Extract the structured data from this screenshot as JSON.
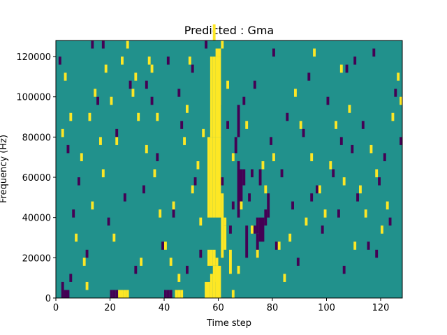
{
  "chart_data": {
    "type": "heatmap",
    "title": "Predicted : Gma",
    "xlabel": "Time step",
    "ylabel": "Frequency (Hz)",
    "xlim": [
      0,
      128
    ],
    "ylim": [
      0,
      128000
    ],
    "x_ticks": [
      0,
      20,
      40,
      60,
      80,
      100,
      120
    ],
    "y_ticks": [
      0,
      20000,
      40000,
      60000,
      80000,
      100000,
      120000
    ],
    "y_tick_labels": [
      "0",
      "20000",
      "40000",
      "60000",
      "80000",
      "100000",
      "120000"
    ],
    "grid": false,
    "colormap": "viridis",
    "colors": {
      "background": "#21918c",
      "low": "#440154",
      "high": "#fde725"
    },
    "time_bins": 128,
    "freq_bin_hz": 4000,
    "cells_high": [
      [
        55,
        0,
        2
      ],
      [
        56,
        0,
        2
      ],
      [
        57,
        0,
        3
      ],
      [
        58,
        0,
        4
      ],
      [
        59,
        0,
        4
      ],
      [
        60,
        0,
        4
      ],
      [
        56,
        4,
        6
      ],
      [
        57,
        4,
        6
      ],
      [
        58,
        4,
        6
      ],
      [
        59,
        4,
        5
      ],
      [
        56,
        10,
        20
      ],
      [
        57,
        10,
        20
      ],
      [
        58,
        10,
        20
      ],
      [
        59,
        10,
        20
      ],
      [
        60,
        10,
        20
      ],
      [
        57,
        20,
        30
      ],
      [
        58,
        20,
        30
      ],
      [
        59,
        20,
        30
      ],
      [
        60,
        20,
        30
      ],
      [
        61,
        5,
        13
      ],
      [
        62,
        6,
        9
      ],
      [
        59,
        2,
        4
      ],
      [
        23,
        0,
        1
      ],
      [
        24,
        0,
        1
      ],
      [
        25,
        0,
        1
      ],
      [
        26,
        0,
        1
      ],
      [
        44,
        0,
        1
      ],
      [
        45,
        0,
        1
      ],
      [
        46,
        0,
        1
      ],
      [
        59,
        30,
        31
      ],
      [
        60,
        30,
        31
      ],
      [
        61,
        31,
        32
      ],
      [
        58,
        32,
        34
      ],
      [
        60,
        24,
        27
      ],
      [
        64,
        3,
        6
      ],
      [
        65,
        0,
        1
      ],
      [
        2,
        20,
        21
      ],
      [
        5,
        22,
        23
      ],
      [
        9,
        17,
        18
      ],
      [
        12,
        22,
        23
      ],
      [
        14,
        25,
        26
      ],
      [
        16,
        19,
        20
      ],
      [
        18,
        28,
        29
      ],
      [
        20,
        24,
        25
      ],
      [
        22,
        19,
        20
      ],
      [
        24,
        29,
        30
      ],
      [
        26,
        31,
        32
      ],
      [
        28,
        25,
        26
      ],
      [
        30,
        22,
        23
      ],
      [
        33,
        18,
        19
      ],
      [
        34,
        29,
        30
      ],
      [
        36,
        15,
        16
      ],
      [
        38,
        10,
        11
      ],
      [
        40,
        6,
        7
      ],
      [
        42,
        4,
        5
      ],
      [
        45,
        2,
        3
      ],
      [
        47,
        19,
        20
      ],
      [
        48,
        23,
        24
      ],
      [
        50,
        13,
        14
      ],
      [
        52,
        16,
        17
      ],
      [
        54,
        20,
        21
      ],
      [
        62,
        9,
        10
      ],
      [
        63,
        26,
        27
      ],
      [
        65,
        17,
        18
      ],
      [
        68,
        11,
        12
      ],
      [
        72,
        8,
        9
      ],
      [
        74,
        5,
        6
      ],
      [
        77,
        13,
        14
      ],
      [
        80,
        17,
        18
      ],
      [
        82,
        6,
        7
      ],
      [
        86,
        7,
        8
      ],
      [
        88,
        25,
        26
      ],
      [
        90,
        21,
        22
      ],
      [
        92,
        9,
        10
      ],
      [
        95,
        30,
        31
      ],
      [
        97,
        13,
        14
      ],
      [
        99,
        10,
        11
      ],
      [
        101,
        16,
        17
      ],
      [
        103,
        21,
        22
      ],
      [
        105,
        28,
        29
      ],
      [
        108,
        23,
        24
      ],
      [
        110,
        6,
        7
      ],
      [
        112,
        13,
        14
      ],
      [
        114,
        10,
        11
      ],
      [
        116,
        18,
        19
      ],
      [
        118,
        15,
        16
      ],
      [
        120,
        8,
        9
      ],
      [
        122,
        11,
        12
      ],
      [
        124,
        22,
        23
      ],
      [
        126,
        27,
        28
      ],
      [
        127,
        24,
        25
      ],
      [
        3,
        27,
        28
      ],
      [
        7,
        7,
        8
      ],
      [
        10,
        4,
        5
      ],
      [
        11,
        1,
        2
      ],
      [
        13,
        11,
        12
      ],
      [
        17,
        15,
        16
      ],
      [
        21,
        7,
        8
      ],
      [
        29,
        27,
        28
      ],
      [
        31,
        4,
        5
      ],
      [
        35,
        28,
        29
      ],
      [
        37,
        22,
        23
      ],
      [
        43,
        11,
        12
      ],
      [
        49,
        29,
        30
      ],
      [
        53,
        9,
        10
      ],
      [
        67,
        3,
        4
      ],
      [
        70,
        21,
        22
      ],
      [
        76,
        16,
        17
      ],
      [
        84,
        2,
        3
      ],
      [
        94,
        17,
        18
      ],
      [
        106,
        14,
        15
      ]
    ],
    "cells_low": [
      [
        2,
        0,
        2
      ],
      [
        3,
        0,
        1
      ],
      [
        4,
        0,
        1
      ],
      [
        20,
        0,
        1
      ],
      [
        21,
        0,
        1
      ],
      [
        22,
        0,
        1
      ],
      [
        40,
        0,
        1
      ],
      [
        41,
        0,
        1
      ],
      [
        42,
        0,
        1
      ],
      [
        67,
        10,
        17
      ],
      [
        68,
        12,
        16
      ],
      [
        69,
        14,
        16
      ],
      [
        67,
        20,
        24
      ],
      [
        73,
        8,
        9
      ],
      [
        74,
        8,
        10
      ],
      [
        75,
        7,
        10
      ],
      [
        76,
        7,
        10
      ],
      [
        77,
        9,
        11
      ],
      [
        66,
        18,
        20
      ],
      [
        70,
        5,
        9
      ],
      [
        72,
        15,
        16
      ],
      [
        75,
        14,
        16
      ],
      [
        74,
        5,
        8
      ],
      [
        78,
        10,
        13
      ],
      [
        1,
        29,
        30
      ],
      [
        4,
        18,
        19
      ],
      [
        6,
        10,
        11
      ],
      [
        8,
        14,
        15
      ],
      [
        11,
        5,
        6
      ],
      [
        15,
        24,
        25
      ],
      [
        17,
        31,
        32
      ],
      [
        19,
        9,
        10
      ],
      [
        22,
        20,
        21
      ],
      [
        25,
        12,
        13
      ],
      [
        27,
        26,
        27
      ],
      [
        29,
        3,
        4
      ],
      [
        32,
        13,
        14
      ],
      [
        35,
        24,
        25
      ],
      [
        37,
        17,
        18
      ],
      [
        39,
        6,
        7
      ],
      [
        41,
        29,
        30
      ],
      [
        43,
        10,
        11
      ],
      [
        46,
        21,
        22
      ],
      [
        48,
        3,
        4
      ],
      [
        50,
        28,
        29
      ],
      [
        51,
        14,
        15
      ],
      [
        53,
        5,
        6
      ],
      [
        63,
        21,
        22
      ],
      [
        65,
        11,
        12
      ],
      [
        69,
        24,
        25
      ],
      [
        71,
        12,
        13
      ],
      [
        73,
        26,
        27
      ],
      [
        79,
        19,
        20
      ],
      [
        81,
        6,
        7
      ],
      [
        83,
        15,
        16
      ],
      [
        85,
        22,
        23
      ],
      [
        87,
        11,
        12
      ],
      [
        89,
        4,
        5
      ],
      [
        91,
        20,
        21
      ],
      [
        93,
        27,
        28
      ],
      [
        96,
        13,
        14
      ],
      [
        98,
        8,
        9
      ],
      [
        100,
        24,
        25
      ],
      [
        102,
        15,
        16
      ],
      [
        104,
        10,
        11
      ],
      [
        106,
        3,
        4
      ],
      [
        107,
        28,
        29
      ],
      [
        109,
        18,
        19
      ],
      [
        111,
        12,
        13
      ],
      [
        113,
        21,
        22
      ],
      [
        115,
        6,
        7
      ],
      [
        117,
        30,
        31
      ],
      [
        119,
        14,
        15
      ],
      [
        121,
        17,
        18
      ],
      [
        123,
        9,
        10
      ],
      [
        125,
        25,
        26
      ],
      [
        127,
        19,
        20
      ],
      [
        13,
        31,
        32
      ],
      [
        33,
        26,
        27
      ],
      [
        45,
        25,
        26
      ],
      [
        55,
        31,
        32
      ],
      [
        61,
        14,
        15
      ],
      [
        64,
        8,
        9
      ],
      [
        80,
        30,
        31
      ],
      [
        94,
        12,
        13
      ],
      [
        105,
        19,
        20
      ],
      [
        110,
        29,
        30
      ],
      [
        118,
        5,
        6
      ],
      [
        5,
        2,
        3
      ]
    ]
  }
}
